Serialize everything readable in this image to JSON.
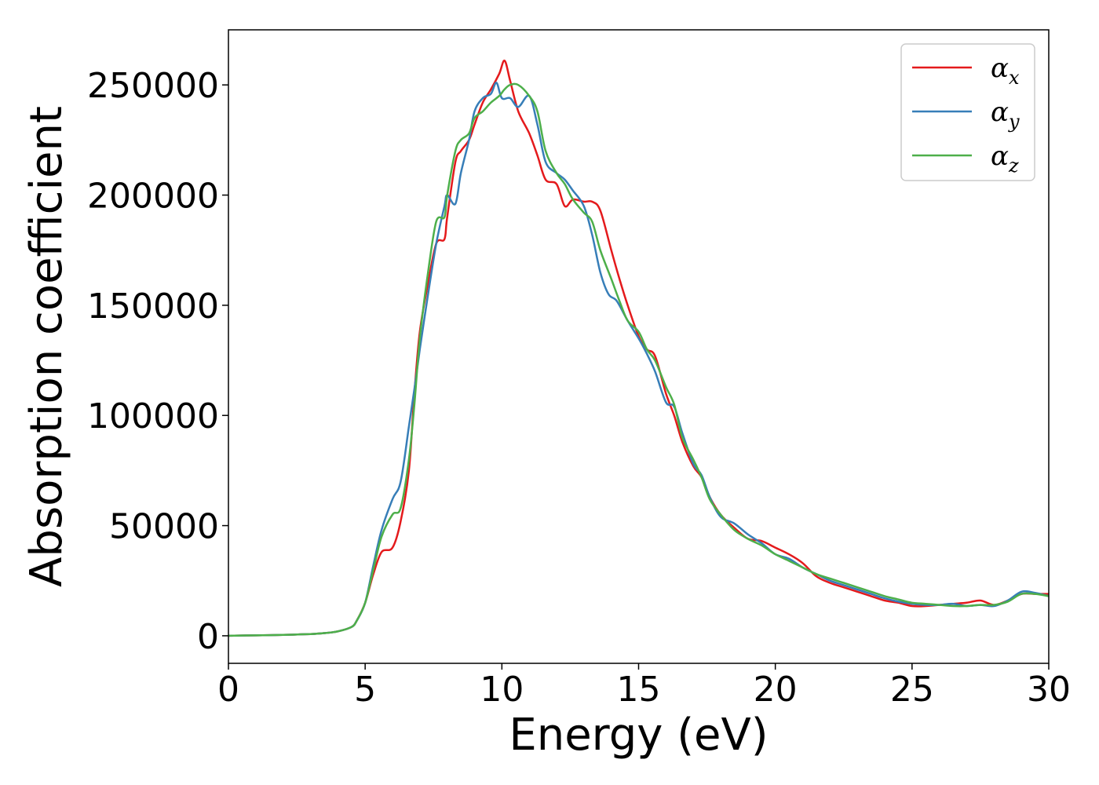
{
  "chart_data": {
    "type": "line",
    "xlabel": "Energy (eV)",
    "ylabel": "Absorption coefficient",
    "xlim": [
      0,
      30
    ],
    "ylim": [
      -12500,
      275000
    ],
    "xticks": [
      0,
      5,
      10,
      15,
      20,
      25,
      30
    ],
    "yticks": [
      0,
      50000,
      100000,
      150000,
      200000,
      250000
    ],
    "grid": false,
    "legend_position": "top-right",
    "series": [
      {
        "name": "α",
        "subscript": "x",
        "color": "#e41a1c",
        "x": [
          0,
          1,
          2,
          3,
          3.5,
          4,
          4.5,
          4.7,
          5,
          5.3,
          5.6,
          6,
          6.3,
          6.6,
          6.8,
          7,
          7.3,
          7.6,
          7.9,
          8,
          8.3,
          8.5,
          8.8,
          9,
          9.3,
          9.6,
          9.9,
          10.1,
          10.3,
          10.6,
          11,
          11.3,
          11.6,
          12,
          12.3,
          12.6,
          13,
          13.3,
          13.6,
          14,
          14.3,
          14.6,
          15,
          15.3,
          15.6,
          16,
          16.3,
          16.6,
          17,
          17.3,
          17.6,
          18,
          18.5,
          19,
          19.5,
          20,
          20.5,
          21,
          21.5,
          22,
          22.5,
          23,
          23.5,
          24,
          24.5,
          25,
          25.5,
          26,
          26.5,
          27,
          27.5,
          28,
          28.5,
          29,
          29.5,
          30
        ],
        "y": [
          0,
          200,
          400,
          800,
          1200,
          2000,
          4000,
          7000,
          15000,
          28000,
          38000,
          40000,
          52000,
          75000,
          110000,
          138000,
          160000,
          178000,
          180000,
          190000,
          215000,
          220000,
          225000,
          232000,
          242000,
          248000,
          255000,
          261000,
          252000,
          238000,
          228000,
          218000,
          207000,
          205000,
          195000,
          198000,
          197000,
          197000,
          193000,
          175000,
          162000,
          150000,
          136000,
          130000,
          127000,
          110000,
          100000,
          88000,
          77000,
          72000,
          63000,
          55000,
          49000,
          44000,
          43000,
          40000,
          37000,
          33000,
          27000,
          24000,
          22000,
          20000,
          18000,
          16000,
          15000,
          13500,
          13500,
          14000,
          14500,
          15000,
          16000,
          14000,
          16000,
          19000,
          19000,
          19000
        ]
      },
      {
        "name": "α",
        "subscript": "y",
        "color": "#377eb8",
        "x": [
          0,
          1,
          2,
          3,
          3.5,
          4,
          4.5,
          4.7,
          5,
          5.3,
          5.6,
          6,
          6.3,
          6.6,
          6.8,
          7,
          7.3,
          7.6,
          7.9,
          8,
          8.3,
          8.5,
          8.8,
          9,
          9.3,
          9.6,
          9.8,
          10,
          10.3,
          10.6,
          11,
          11.3,
          11.6,
          12,
          12.3,
          12.6,
          13,
          13.3,
          13.6,
          13.9,
          14.2,
          14.6,
          15,
          15.3,
          15.6,
          16,
          16.3,
          16.6,
          17,
          17.3,
          17.6,
          18,
          18.5,
          19,
          19.5,
          20,
          20.5,
          21,
          21.5,
          22,
          22.5,
          23,
          23.5,
          24,
          24.5,
          25,
          25.5,
          26,
          26.5,
          27,
          27.5,
          28,
          28.5,
          29,
          29.5,
          30
        ],
        "y": [
          0,
          200,
          400,
          800,
          1200,
          2000,
          4000,
          7000,
          15000,
          32000,
          48000,
          62000,
          70000,
          95000,
          112000,
          130000,
          155000,
          178000,
          195000,
          200000,
          196000,
          210000,
          225000,
          238000,
          244000,
          246000,
          251000,
          244000,
          244000,
          240000,
          245000,
          232000,
          215000,
          210000,
          207000,
          202000,
          195000,
          182000,
          165000,
          155000,
          152000,
          143000,
          135000,
          128000,
          120000,
          106000,
          104000,
          92000,
          78000,
          73000,
          63000,
          54000,
          51000,
          46000,
          42000,
          37000,
          35000,
          31000,
          28000,
          25000,
          23000,
          21000,
          19000,
          17000,
          15500,
          14500,
          14000,
          14000,
          14500,
          13500,
          14000,
          13500,
          16000,
          20000,
          19500,
          18000
        ]
      },
      {
        "name": "α",
        "subscript": "z",
        "color": "#4daf4a",
        "x": [
          0,
          1,
          2,
          3,
          3.5,
          4,
          4.5,
          4.7,
          5,
          5.3,
          5.6,
          6,
          6.3,
          6.6,
          6.8,
          7,
          7.3,
          7.6,
          7.9,
          8,
          8.3,
          8.5,
          8.8,
          9,
          9.3,
          9.6,
          9.9,
          10.1,
          10.3,
          10.6,
          11,
          11.3,
          11.6,
          12,
          12.3,
          12.6,
          13,
          13.3,
          13.6,
          14,
          14.3,
          14.6,
          15,
          15.3,
          15.6,
          16,
          16.3,
          16.6,
          17,
          17.3,
          17.6,
          18,
          18.5,
          19,
          19.5,
          20,
          20.5,
          21,
          21.5,
          22,
          22.5,
          23,
          23.5,
          24,
          24.5,
          25,
          25.5,
          26,
          26.5,
          27,
          27.5,
          28,
          28.5,
          29,
          29.5,
          30
        ],
        "y": [
          0,
          200,
          400,
          800,
          1200,
          2000,
          4000,
          7000,
          15000,
          30000,
          45000,
          55000,
          58000,
          80000,
          105000,
          135000,
          165000,
          188000,
          190000,
          200000,
          220000,
          225000,
          228000,
          235000,
          238000,
          242000,
          245000,
          248000,
          250000,
          250000,
          245000,
          238000,
          220000,
          210000,
          205000,
          198000,
          192000,
          188000,
          175000,
          162000,
          152000,
          143000,
          138000,
          130000,
          125000,
          113000,
          105000,
          90000,
          80000,
          72000,
          62000,
          55000,
          48000,
          44000,
          41000,
          37000,
          34000,
          31000,
          28000,
          26000,
          24000,
          22000,
          20000,
          18000,
          16500,
          15000,
          14500,
          14000,
          13500,
          13500,
          14000,
          14000,
          15500,
          19000,
          19000,
          18000
        ]
      }
    ]
  }
}
